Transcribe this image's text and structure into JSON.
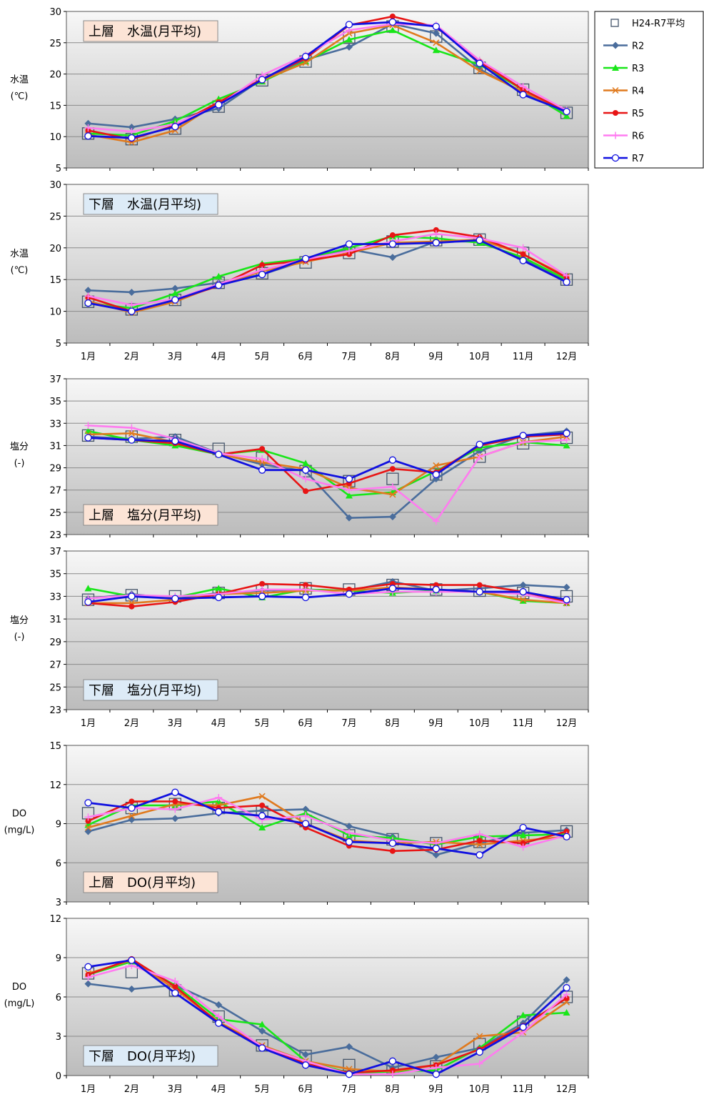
{
  "months": [
    "1月",
    "2月",
    "3月",
    "4月",
    "5月",
    "6月",
    "7月",
    "8月",
    "9月",
    "10月",
    "11月",
    "12月"
  ],
  "legend": [
    {
      "name": "H24-R7平均",
      "color": "#44546A",
      "marker": "square"
    },
    {
      "name": "R2",
      "color": "#4A6D9C",
      "marker": "diamond"
    },
    {
      "name": "R3",
      "color": "#19E619",
      "marker": "triangle"
    },
    {
      "name": "R4",
      "color": "#E07A1E",
      "marker": "x"
    },
    {
      "name": "R5",
      "color": "#E81515",
      "marker": "circle"
    },
    {
      "name": "R6",
      "color": "#FF7BF0",
      "marker": "plus"
    },
    {
      "name": "R7",
      "color": "#1010E0",
      "marker": "open-circle"
    }
  ],
  "chart_data": [
    {
      "type": "line",
      "title": "上層　水温(月平均)",
      "ylabel": [
        "水温",
        "(℃)"
      ],
      "ylim": [
        5,
        30
      ],
      "yticks": [
        5,
        10,
        15,
        20,
        25,
        30
      ],
      "show_x_labels": false,
      "title_color": "#FCE4D6",
      "title_pos": "top",
      "series": [
        {
          "name": "H24-R7平均",
          "values": [
            10.5,
            9.6,
            11.3,
            14.8,
            19.0,
            22.0,
            25.8,
            27.6,
            26.0,
            21.0,
            17.5,
            13.8
          ]
        },
        {
          "name": "R2",
          "values": [
            12.1,
            11.5,
            12.8,
            14.5,
            19.2,
            22.3,
            24.3,
            28.0,
            26.5,
            20.8,
            17.0,
            13.8
          ]
        },
        {
          "name": "R3",
          "values": [
            10.5,
            10.2,
            12.5,
            16.0,
            18.8,
            22.0,
            25.5,
            27.0,
            23.8,
            21.5,
            17.5,
            13.3
          ]
        },
        {
          "name": "R4",
          "values": [
            10.3,
            9.1,
            11.0,
            15.5,
            19.0,
            21.8,
            26.5,
            27.8,
            25.0,
            20.5,
            17.2,
            14.0
          ]
        },
        {
          "name": "R5",
          "values": [
            11.0,
            9.6,
            11.8,
            15.5,
            19.2,
            22.5,
            27.8,
            29.2,
            27.5,
            22.0,
            17.5,
            14.0
          ]
        },
        {
          "name": "R6",
          "values": [
            11.4,
            10.8,
            12.0,
            15.0,
            19.8,
            23.0,
            27.0,
            28.0,
            27.8,
            22.2,
            18.0,
            14.2
          ]
        },
        {
          "name": "R7",
          "values": [
            10.1,
            9.8,
            11.6,
            15.1,
            19.1,
            22.8,
            27.9,
            28.3,
            27.6,
            21.7,
            16.7,
            14.0
          ]
        }
      ]
    },
    {
      "type": "line",
      "title": "下層　水温(月平均)",
      "ylabel": [
        "水温",
        "(℃)"
      ],
      "ylim": [
        5,
        30
      ],
      "yticks": [
        5,
        10,
        15,
        20,
        25,
        30
      ],
      "show_x_labels": true,
      "title_color": "#DDEBF7",
      "title_pos": "top",
      "series": [
        {
          "name": "H24-R7平均",
          "values": [
            11.5,
            10.3,
            11.8,
            14.5,
            16.0,
            17.7,
            19.2,
            21.0,
            21.2,
            21.3,
            19.2,
            15.0
          ]
        },
        {
          "name": "R2",
          "values": [
            13.3,
            13.0,
            13.6,
            14.5,
            15.8,
            18.0,
            19.8,
            18.5,
            21.0,
            21.0,
            18.3,
            14.8
          ]
        },
        {
          "name": "R3",
          "values": [
            11.3,
            10.5,
            12.8,
            15.5,
            17.5,
            18.3,
            20.0,
            21.8,
            21.5,
            20.8,
            18.5,
            15.0
          ]
        },
        {
          "name": "R4",
          "values": [
            11.6,
            9.8,
            11.5,
            14.2,
            16.3,
            17.8,
            19.2,
            20.8,
            21.0,
            21.3,
            19.0,
            15.5
          ]
        },
        {
          "name": "R5",
          "values": [
            12.2,
            10.0,
            11.8,
            14.0,
            17.3,
            18.0,
            19.0,
            22.0,
            22.8,
            21.7,
            19.0,
            15.3
          ]
        },
        {
          "name": "R6",
          "values": [
            12.4,
            11.0,
            11.9,
            14.3,
            16.5,
            18.2,
            19.5,
            21.0,
            22.2,
            21.5,
            20.0,
            15.6
          ]
        },
        {
          "name": "R7",
          "values": [
            11.3,
            10.0,
            11.8,
            14.1,
            15.8,
            18.3,
            20.6,
            20.6,
            20.8,
            21.2,
            18.0,
            14.6
          ]
        }
      ]
    },
    {
      "type": "line",
      "title": "上層　塩分(月平均)",
      "ylabel": [
        "塩分",
        "(-)"
      ],
      "ylim": [
        23,
        37
      ],
      "yticks": [
        23,
        25,
        27,
        29,
        31,
        33,
        35,
        37
      ],
      "show_x_labels": false,
      "title_color": "#FCE4D6",
      "title_pos": "bottom",
      "series": [
        {
          "name": "H24-R7平均",
          "values": [
            31.9,
            31.8,
            31.5,
            30.7,
            29.9,
            28.7,
            27.8,
            28.0,
            28.4,
            30.0,
            31.2,
            31.7
          ]
        },
        {
          "name": "R2",
          "values": [
            31.8,
            31.6,
            31.8,
            30.3,
            29.3,
            28.7,
            24.5,
            24.6,
            28.0,
            30.5,
            31.9,
            32.3
          ]
        },
        {
          "name": "R3",
          "values": [
            32.3,
            31.5,
            31.0,
            30.2,
            30.6,
            29.4,
            26.5,
            26.8,
            28.7,
            30.8,
            31.3,
            31.0
          ]
        },
        {
          "name": "R4",
          "values": [
            32.0,
            32.1,
            31.3,
            30.2,
            29.5,
            28.9,
            27.2,
            26.6,
            29.2,
            30.0,
            31.3,
            31.8
          ]
        },
        {
          "name": "R5",
          "values": [
            31.7,
            31.5,
            31.2,
            30.2,
            30.7,
            26.9,
            27.6,
            28.9,
            28.6,
            31.0,
            31.8,
            32.0
          ]
        },
        {
          "name": "R6",
          "values": [
            32.8,
            32.6,
            31.6,
            30.3,
            29.8,
            28.0,
            27.0,
            27.3,
            24.2,
            30.0,
            31.3,
            31.5
          ]
        },
        {
          "name": "R7",
          "values": [
            31.7,
            31.5,
            31.4,
            30.2,
            28.8,
            28.8,
            28.0,
            29.7,
            28.4,
            31.1,
            31.9,
            32.1
          ]
        }
      ]
    },
    {
      "type": "line",
      "title": "下層　塩分(月平均)",
      "ylabel": [
        "塩分",
        "(-)"
      ],
      "ylim": [
        23,
        37
      ],
      "yticks": [
        23,
        25,
        27,
        29,
        31,
        33,
        35,
        37
      ],
      "show_x_labels": true,
      "title_color": "#DDEBF7",
      "title_pos": "bottom",
      "series": [
        {
          "name": "H24-R7平均",
          "values": [
            32.7,
            33.1,
            33.0,
            33.3,
            33.5,
            33.7,
            33.6,
            34.0,
            33.6,
            33.5,
            33.3,
            33.0
          ]
        },
        {
          "name": "R2",
          "values": [
            32.8,
            33.2,
            32.8,
            33.3,
            33.5,
            33.6,
            33.5,
            34.3,
            33.5,
            33.7,
            34.0,
            33.8
          ]
        },
        {
          "name": "R3",
          "values": [
            33.7,
            33.0,
            32.9,
            33.7,
            32.9,
            33.6,
            33.5,
            33.3,
            33.5,
            33.4,
            32.6,
            32.4
          ]
        },
        {
          "name": "R4",
          "values": [
            32.4,
            32.4,
            32.7,
            33.2,
            33.3,
            33.5,
            33.5,
            33.8,
            33.6,
            33.4,
            32.7,
            32.4
          ]
        },
        {
          "name": "R5",
          "values": [
            32.4,
            32.1,
            32.5,
            33.2,
            34.1,
            34.0,
            33.6,
            34.1,
            34.0,
            34.0,
            33.4,
            32.5
          ]
        },
        {
          "name": "R6",
          "values": [
            32.8,
            33.1,
            33.0,
            33.2,
            33.6,
            33.6,
            33.2,
            33.4,
            33.4,
            33.4,
            33.2,
            32.4
          ]
        },
        {
          "name": "R7",
          "values": [
            32.5,
            33.0,
            32.8,
            32.9,
            33.0,
            32.9,
            33.2,
            33.7,
            33.6,
            33.4,
            33.4,
            32.7
          ]
        }
      ]
    },
    {
      "type": "line",
      "title": "上層　DO(月平均)",
      "ylabel": [
        "DO",
        "(mg/L)"
      ],
      "ylim": [
        3,
        15
      ],
      "yticks": [
        3,
        6,
        9,
        12,
        15
      ],
      "show_x_labels": false,
      "title_color": "#FCE4D6",
      "title_pos": "bottom",
      "series": [
        {
          "name": "H24-R7平均",
          "values": [
            9.8,
            10.2,
            10.5,
            10.2,
            9.9,
            9.2,
            8.1,
            7.8,
            7.5,
            7.6,
            7.9,
            8.4
          ]
        },
        {
          "name": "R2",
          "values": [
            8.4,
            9.3,
            9.4,
            9.8,
            10.0,
            10.1,
            8.8,
            8.0,
            6.6,
            7.5,
            8.3,
            8.5
          ]
        },
        {
          "name": "R3",
          "values": [
            8.9,
            10.4,
            10.4,
            10.7,
            8.7,
            9.8,
            8.1,
            7.9,
            7.4,
            8.0,
            8.1,
            8.2
          ]
        },
        {
          "name": "R4",
          "values": [
            8.7,
            9.6,
            10.5,
            10.4,
            11.1,
            9.0,
            7.7,
            7.5,
            7.6,
            7.4,
            7.7,
            8.0
          ]
        },
        {
          "name": "R5",
          "values": [
            9.2,
            10.7,
            10.7,
            10.2,
            10.4,
            8.7,
            7.3,
            6.9,
            7.0,
            7.7,
            7.5,
            8.4
          ]
        },
        {
          "name": "R6",
          "values": [
            9.5,
            10.2,
            10.1,
            11.0,
            9.3,
            9.6,
            8.3,
            7.7,
            7.5,
            8.2,
            7.2,
            8.1
          ]
        },
        {
          "name": "R7",
          "values": [
            10.6,
            10.2,
            11.4,
            9.9,
            9.6,
            9.0,
            7.6,
            7.5,
            7.1,
            6.6,
            8.7,
            8.0
          ]
        }
      ]
    },
    {
      "type": "line",
      "title": "下層　DO(月平均)",
      "ylabel": [
        "DO",
        "(mg/L)"
      ],
      "ylim": [
        0,
        12
      ],
      "yticks": [
        0,
        3,
        6,
        9,
        12
      ],
      "show_x_labels": true,
      "title_color": "#DDEBF7",
      "title_pos": "bottom",
      "series": [
        {
          "name": "H24-R7平均",
          "values": [
            7.8,
            7.9,
            6.5,
            4.5,
            2.3,
            1.5,
            0.8,
            0.6,
            0.7,
            2.4,
            4.1,
            6.0
          ]
        },
        {
          "name": "R2",
          "values": [
            7.0,
            6.6,
            6.9,
            5.4,
            3.4,
            1.6,
            2.2,
            0.6,
            1.4,
            2.1,
            4.0,
            7.3
          ]
        },
        {
          "name": "R3",
          "values": [
            7.7,
            8.7,
            6.9,
            4.3,
            3.9,
            1.1,
            0.2,
            0.3,
            0.4,
            2.1,
            4.6,
            4.8
          ]
        },
        {
          "name": "R4",
          "values": [
            7.8,
            8.8,
            6.6,
            4.1,
            2.3,
            1.1,
            0.5,
            0.3,
            0.8,
            3.0,
            3.3,
            5.6
          ]
        },
        {
          "name": "R5",
          "values": [
            7.7,
            8.9,
            6.8,
            4.0,
            2.2,
            0.9,
            0.2,
            0.4,
            0.8,
            2.0,
            3.8,
            5.9
          ]
        },
        {
          "name": "R6",
          "values": [
            7.5,
            8.4,
            7.2,
            4.5,
            2.2,
            1.1,
            0.1,
            0.1,
            0.6,
            0.9,
            3.3,
            6.2
          ]
        },
        {
          "name": "R7",
          "values": [
            8.3,
            8.8,
            6.3,
            4.0,
            2.1,
            0.8,
            0.1,
            1.1,
            0.1,
            1.8,
            3.7,
            6.7
          ]
        }
      ]
    }
  ]
}
